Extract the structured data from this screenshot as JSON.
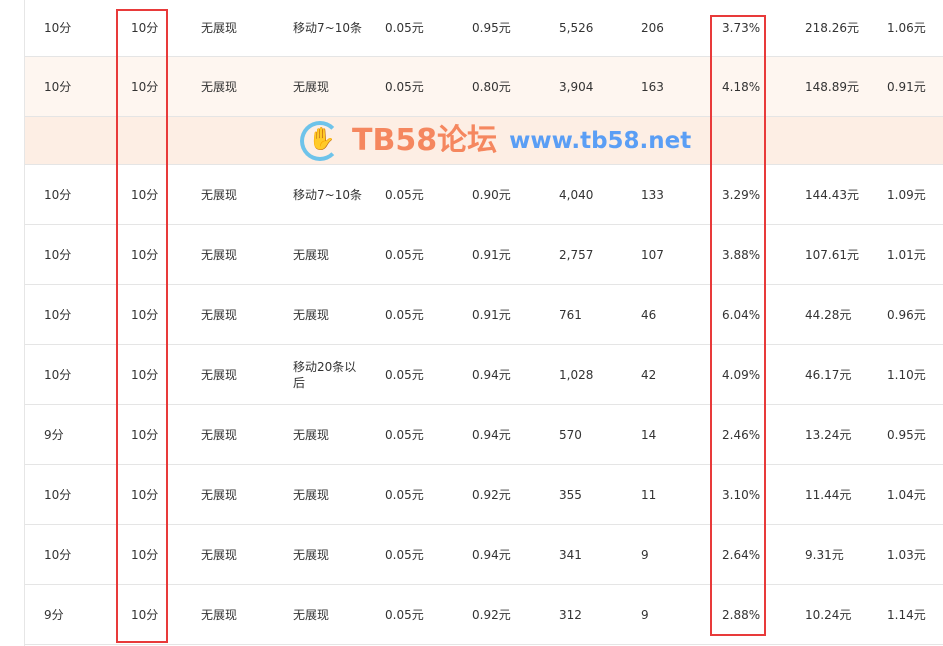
{
  "rows": [
    [
      "10分",
      "10分",
      "无展现",
      "移动7~10条",
      "0.05元",
      "0.95元",
      "5,526",
      "206",
      "3.73%",
      "218.26元",
      "1.06元"
    ],
    [
      "10分",
      "10分",
      "无展现",
      "无展现",
      "0.05元",
      "0.80元",
      "3,904",
      "163",
      "4.18%",
      "148.89元",
      "0.91元"
    ],
    [
      "10分",
      "10分",
      "无展现",
      "移动7~10条",
      "0.05元",
      "0.90元",
      "4,040",
      "133",
      "3.29%",
      "144.43元",
      "1.09元"
    ],
    [
      "10分",
      "10分",
      "无展现",
      "无展现",
      "0.05元",
      "0.91元",
      "2,757",
      "107",
      "3.88%",
      "107.61元",
      "1.01元"
    ],
    [
      "10分",
      "10分",
      "无展现",
      "无展现",
      "0.05元",
      "0.91元",
      "761",
      "46",
      "6.04%",
      "44.28元",
      "0.96元"
    ],
    [
      "10分",
      "10分",
      "无展现",
      "移动20条以后",
      "0.05元",
      "0.94元",
      "1,028",
      "42",
      "4.09%",
      "46.17元",
      "1.10元"
    ],
    [
      "9分",
      "10分",
      "无展现",
      "无展现",
      "0.05元",
      "0.94元",
      "570",
      "14",
      "2.46%",
      "13.24元",
      "0.95元"
    ],
    [
      "10分",
      "10分",
      "无展现",
      "无展现",
      "0.05元",
      "0.92元",
      "355",
      "11",
      "3.10%",
      "11.44元",
      "1.04元"
    ],
    [
      "10分",
      "10分",
      "无展现",
      "无展现",
      "0.05元",
      "0.94元",
      "341",
      "9",
      "2.64%",
      "9.31元",
      "1.03元"
    ],
    [
      "9分",
      "10分",
      "无展现",
      "无展现",
      "0.05元",
      "0.92元",
      "312",
      "9",
      "2.88%",
      "10.24元",
      "1.14元"
    ]
  ],
  "watermark": {
    "title": "TB58论坛",
    "url": "www.tb58.net"
  },
  "colors": {
    "highlight_box": "#e83a3a",
    "hover_row": "#fef6f0",
    "band": "#fdeee4"
  }
}
